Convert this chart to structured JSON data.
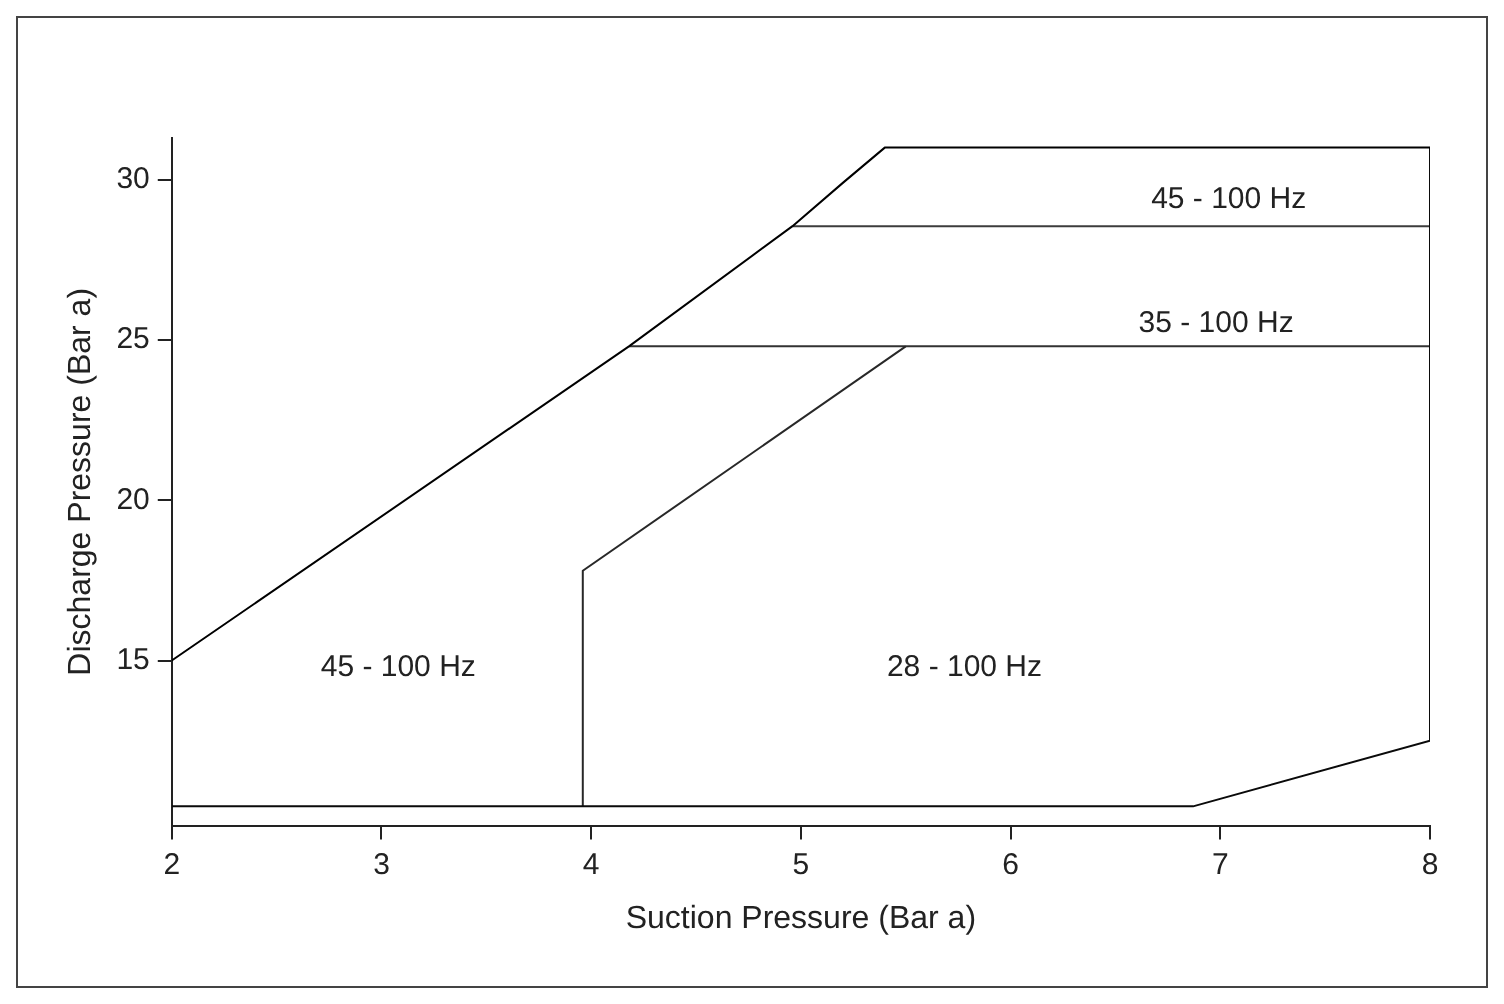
{
  "chart_data": {
    "type": "line",
    "xlabel": "Suction Pressure (Bar a)",
    "ylabel": "Discharge Pressure (Bar a)",
    "xlim": [
      2,
      8
    ],
    "ylim": [
      9.85,
      31.3
    ],
    "xticks": [
      2,
      3,
      4,
      5,
      6,
      7,
      8
    ],
    "yticks": [
      15,
      20,
      25,
      30
    ],
    "grid": false,
    "legend": false,
    "marker": "none",
    "line_style": "solid",
    "series": [
      {
        "color": "#000000",
        "x": [
          2,
          4.18,
          4.96,
          5.2,
          5.4,
          8
        ],
        "values": [
          15,
          24.8,
          28.55,
          29.9,
          31,
          31
        ]
      },
      {
        "color": "#0a0a0a",
        "x": [
          2,
          6.87,
          8,
          8
        ],
        "values": [
          10.45,
          10.45,
          12.5,
          31
        ]
      },
      {
        "color": "#282828",
        "x": [
          3.96,
          3.96,
          5.5
        ],
        "values": [
          10.45,
          17.8,
          24.8
        ]
      },
      {
        "color": "#323232",
        "x": [
          4.18,
          8
        ],
        "values": [
          24.8,
          24.8
        ]
      },
      {
        "color": "#3c3c3c",
        "x": [
          4.96,
          8
        ],
        "values": [
          28.55,
          28.55
        ]
      }
    ],
    "annotations": [
      "45 - 100 Hz",
      "28 - 100 Hz",
      "35 - 100 Hz",
      "45 - 100 Hz"
    ]
  }
}
